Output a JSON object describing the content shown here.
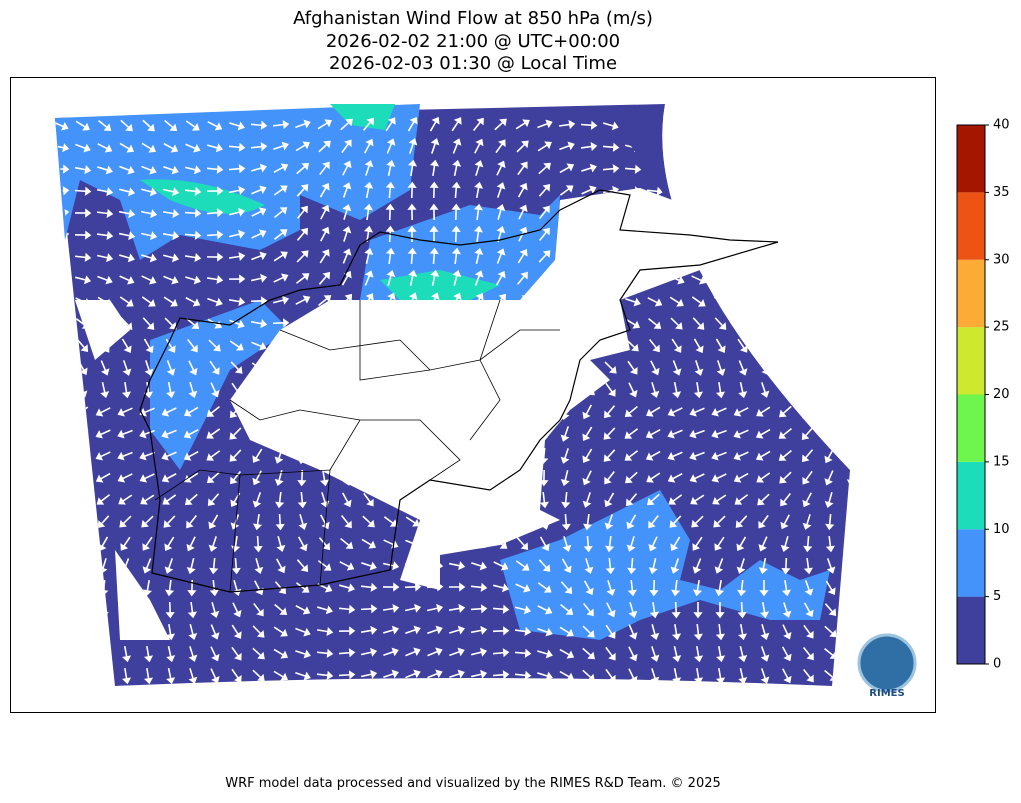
{
  "title": [
    "Afghanistan Wind Flow at 850 hPa (m/s)",
    "2026-02-02 21:00 @ UTC+00:00",
    "2026-02-03 01:30 @ Local Time"
  ],
  "colorbar": {
    "ticks": [
      0,
      5,
      10,
      15,
      20,
      25,
      30,
      35,
      40
    ],
    "colors": [
      "#3f3f9e",
      "#4393fb",
      "#1ddcb9",
      "#6ef64f",
      "#cde82e",
      "#fcab37",
      "#ec5314",
      "#a51600"
    ]
  },
  "logo": "RIMES",
  "footer": "WRF model data processed and visualized by the RIMES R&D Team. © 2025"
}
